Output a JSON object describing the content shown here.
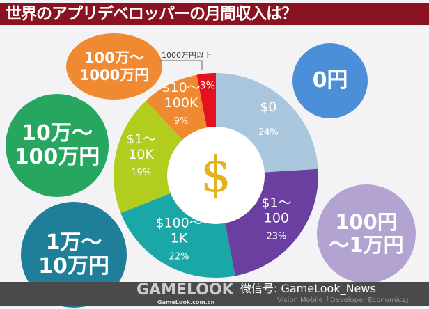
{
  "title": "世界のアプリデベロッパーの月間収入は？",
  "chart_data": {
    "type": "pie",
    "style": "donut",
    "center_icon": "dollar-sign",
    "categories": [
      "$0",
      "$1～100",
      "$100～1K",
      "$1～10K",
      "$10～100K",
      ""
    ],
    "values": [
      24,
      23,
      22,
      19,
      9,
      3
    ],
    "value_labels": [
      "24%",
      "23%",
      "22%",
      "19%",
      "9%",
      "3%"
    ],
    "colors": [
      "#a9c6dc",
      "#6b3fa0",
      "#1aa7a8",
      "#b3cd1e",
      "#f08a32",
      "#e3121c"
    ],
    "callout": "1000万円以上",
    "bubbles": [
      {
        "text": "0円",
        "color": "#4b8fd8"
      },
      {
        "text": "100円\n～1万円",
        "color": "#b2a3d0"
      },
      {
        "text": "1万～\n10万円",
        "color": "#1f7f98"
      },
      {
        "text": "10万～\n100万円",
        "color": "#27a660"
      },
      {
        "text": "100万～\n1000万円",
        "color": "#f08a32"
      }
    ]
  },
  "footer": {
    "logo": "GAMELOOK",
    "logo_url": "GameLook.com.cn",
    "wechat": "微信号: GameLook_News",
    "source": "Vision Mobile「Developer Economics」"
  }
}
